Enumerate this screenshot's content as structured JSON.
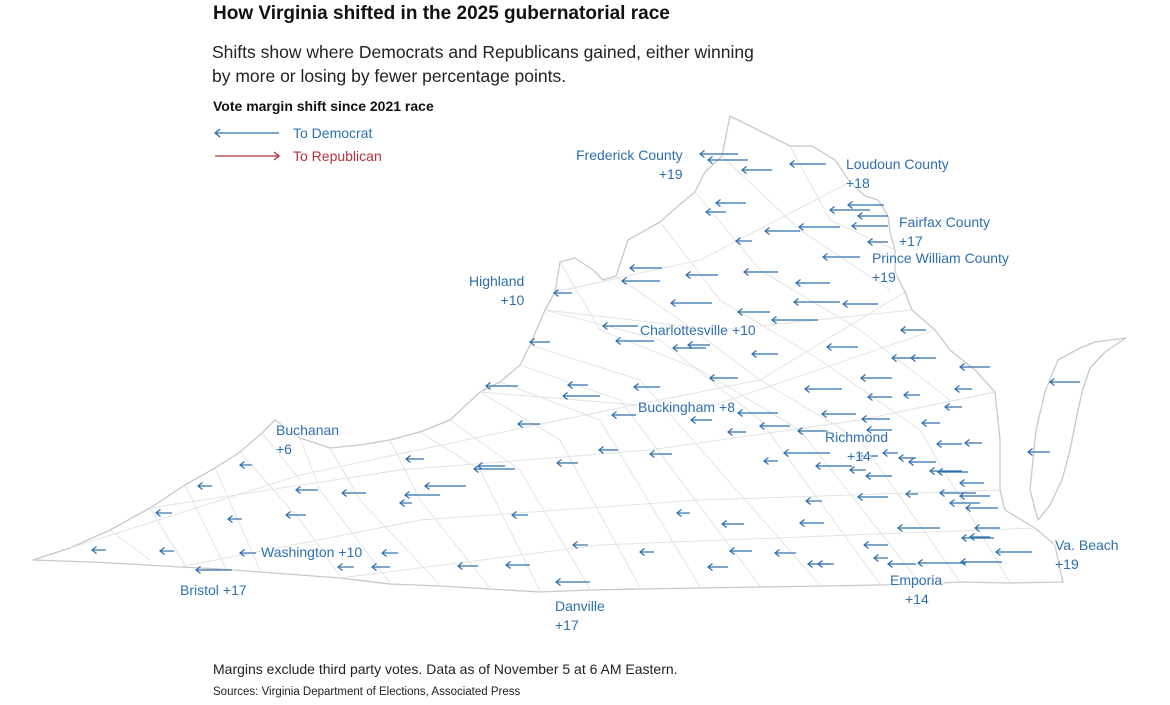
{
  "header": {
    "title": "How Virginia shifted in the 2025 gubernatorial race",
    "subtitle": "Shifts show where Democrats and Republicans gained, either winning by more or losing by fewer percentage points."
  },
  "legend": {
    "title": "Vote margin shift since 2021 race",
    "dem_label": "To Democrat",
    "rep_label": "To Republican",
    "dem_color": "#2f6fae",
    "rep_color": "#b7313a"
  },
  "map": {
    "outline_color": "#cfcfcf",
    "arrow_icon": "left-arrow-icon",
    "labels": [
      {
        "id": "frederick",
        "name": "Frederick County",
        "shift": "+19"
      },
      {
        "id": "loudoun",
        "name": "Loudoun County",
        "shift": "+18"
      },
      {
        "id": "fairfax",
        "name": "Fairfax County",
        "shift": "+17"
      },
      {
        "id": "prince-william",
        "name": "Prince William County",
        "shift": "+19"
      },
      {
        "id": "highland",
        "name": "Highland",
        "shift": "+10"
      },
      {
        "id": "charlottesville",
        "name": "Charlottesville",
        "shift": "+10"
      },
      {
        "id": "buckingham",
        "name": "Buckingham",
        "shift": "+8"
      },
      {
        "id": "richmond",
        "name": "Richmond",
        "shift": "+14"
      },
      {
        "id": "buchanan",
        "name": "Buchanan",
        "shift": "+6"
      },
      {
        "id": "washington",
        "name": "Washington",
        "shift": "+10"
      },
      {
        "id": "bristol",
        "name": "Bristol",
        "shift": "+17"
      },
      {
        "id": "danville",
        "name": "Danville",
        "shift": "+17"
      },
      {
        "id": "emporia",
        "name": "Emporia",
        "shift": "+14"
      },
      {
        "id": "va-beach",
        "name": "Va. Beach",
        "shift": "+19"
      }
    ]
  },
  "footer": {
    "note": "Margins exclude third party votes. Data as of November 5 at 6 AM Eastern.",
    "sources": "Sources: Virginia Department of Elections, Associated Press"
  }
}
